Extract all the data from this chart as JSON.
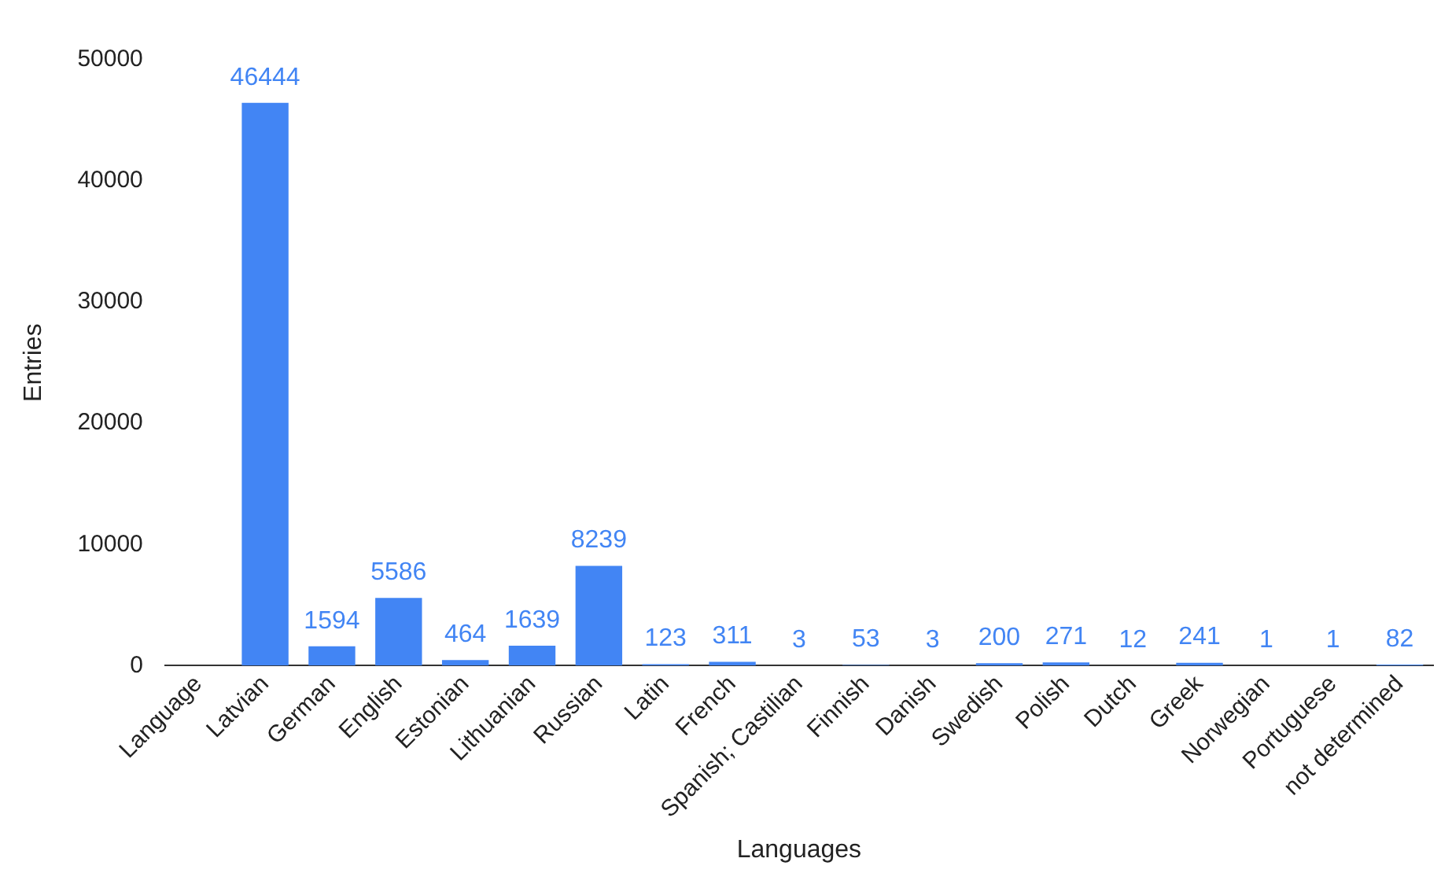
{
  "chart_data": {
    "type": "bar",
    "xlabel": "Languages",
    "ylabel": "Entries",
    "categories": [
      "Language",
      "Latvian",
      "German",
      "English",
      "Estonian",
      "Lithuanian",
      "Russian",
      "Latin",
      "French",
      "Spanish; Castilian",
      "Finnish",
      "Danish",
      "Swedish",
      "Polish",
      "Dutch",
      "Greek",
      "Norwegian",
      "Portuguese",
      "not determined"
    ],
    "values": [
      null,
      46444,
      1594,
      5586,
      464,
      1639,
      8239,
      123,
      311,
      3,
      53,
      3,
      200,
      271,
      12,
      241,
      1,
      1,
      82
    ],
    "color": "#4285f4",
    "ylim": [
      0,
      50000
    ],
    "yticks": [
      0,
      10000,
      20000,
      30000,
      40000,
      50000
    ],
    "grid": false,
    "legend": false,
    "data_labels": true
  }
}
